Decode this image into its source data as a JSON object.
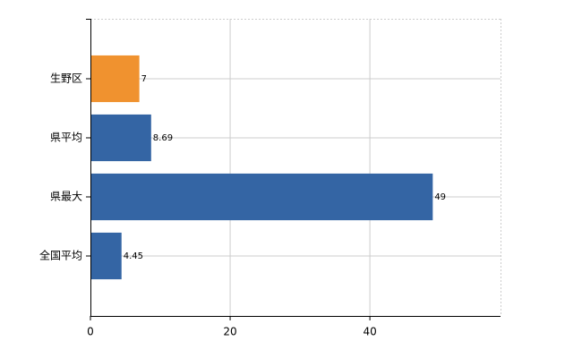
{
  "chart_data": {
    "type": "bar",
    "orientation": "horizontal",
    "categories": [
      "生野区",
      "県平均",
      "県最大",
      "全国平均"
    ],
    "values": [
      7,
      8.69,
      49,
      4.45
    ],
    "colors": [
      "#f0922f",
      "#3465a4",
      "#3465a4",
      "#3465a4"
    ],
    "xlim": [
      0,
      58.7
    ],
    "xticks": [
      0,
      20,
      40
    ],
    "grid": true
  }
}
